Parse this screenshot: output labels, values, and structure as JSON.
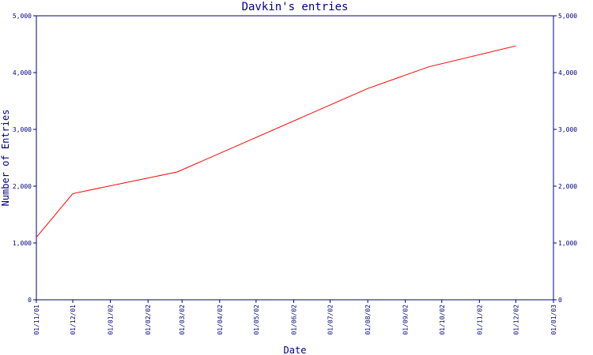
{
  "colors": {
    "axis": "#000080",
    "text": "#000080",
    "series_line": "#ff0000",
    "background": "#ffffff"
  },
  "chart_data": {
    "type": "line",
    "title": "Davkin's entries",
    "xlabel": "Date",
    "ylabel": "Number of Entries",
    "xlim": [
      "2001-11-01",
      "2003-01-01"
    ],
    "ylim": [
      0,
      5000
    ],
    "x_ticks": [
      "01/11/01",
      "01/12/01",
      "01/01/02",
      "01/02/02",
      "01/03/02",
      "01/04/02",
      "01/05/02",
      "01/06/02",
      "01/07/02",
      "01/08/02",
      "01/09/02",
      "01/10/02",
      "01/11/02",
      "01/12/02",
      "01/01/03"
    ],
    "y_ticks": [
      "0",
      "1,000",
      "2,000",
      "3,000",
      "4,000",
      "5,000"
    ],
    "y_tick_values": [
      0,
      1000,
      2000,
      3000,
      4000,
      5000
    ],
    "y_ticks_right": true,
    "grid": false,
    "series": [
      {
        "points": [
          {
            "x": "2001-11-01",
            "y": 1100
          },
          {
            "x": "2001-12-01",
            "y": 1870
          },
          {
            "x": "2002-02-25",
            "y": 2250
          },
          {
            "x": "2002-08-01",
            "y": 3720
          },
          {
            "x": "2002-09-20",
            "y": 4100
          },
          {
            "x": "2002-12-01",
            "y": 4470
          }
        ]
      }
    ]
  }
}
